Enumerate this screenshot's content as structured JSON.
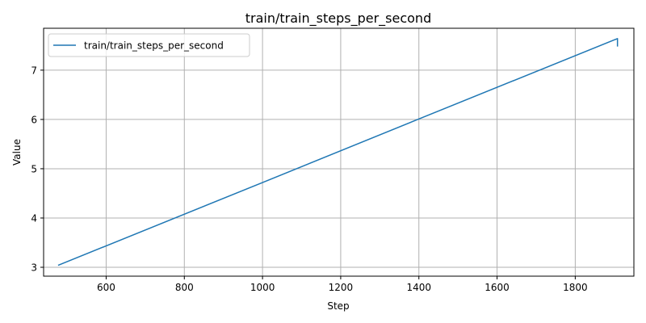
{
  "chart_data": {
    "type": "line",
    "title": "train/train_steps_per_second",
    "xlabel": "Step",
    "ylabel": "Value",
    "xlim": [
      440,
      1950
    ],
    "ylim": [
      2.82,
      7.85
    ],
    "xticks": [
      600,
      800,
      1000,
      1200,
      1400,
      1600,
      1800
    ],
    "yticks": [
      3,
      4,
      5,
      6,
      7
    ],
    "grid": true,
    "legend_position": "top-left",
    "series": [
      {
        "name": "train/train_steps_per_second",
        "color": "#1f77b4",
        "x": [
          477,
          1000,
          1400,
          1908,
          1908,
          1908
        ],
        "y": [
          3.04,
          4.72,
          6.01,
          7.64,
          7.55,
          7.48
        ]
      }
    ]
  }
}
